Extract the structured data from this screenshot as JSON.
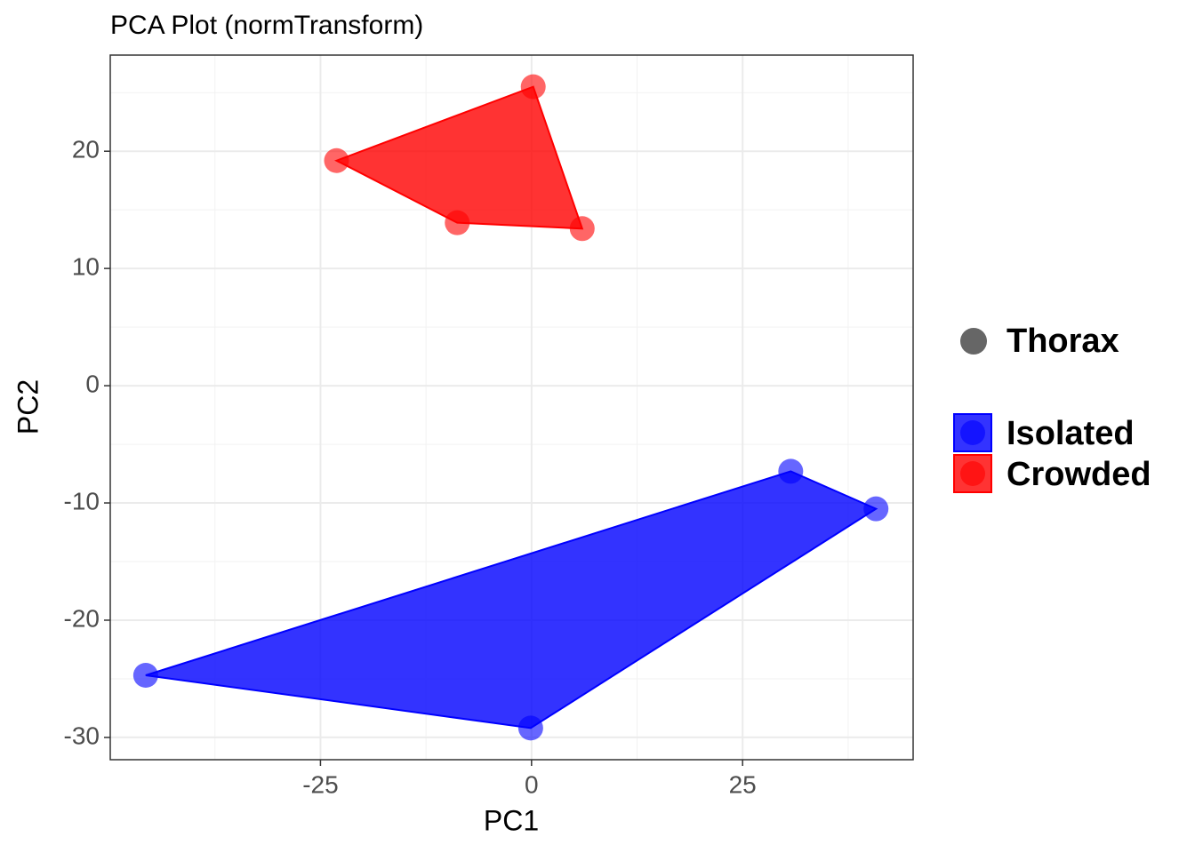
{
  "chart_data": {
    "type": "scatter",
    "title": "PCA Plot (normTransform)",
    "x_label": "PC1",
    "y_label": "PC2",
    "xlim": [
      -49.9,
      45.2
    ],
    "ylim": [
      -31.9,
      28.2
    ],
    "xticks": [
      -25,
      0,
      25
    ],
    "yticks": [
      -30,
      -20,
      -10,
      0,
      10,
      20
    ],
    "grid": true,
    "hull": true,
    "shape_legend": [
      "Thorax"
    ],
    "shape_color": "#666666",
    "series": [
      {
        "name": "Isolated",
        "color": "#0000ff",
        "x": [
          -45.7,
          30.7,
          40.8,
          -0.1
        ],
        "values": [
          -24.7,
          -7.3,
          -10.5,
          -29.2
        ]
      },
      {
        "name": "Crowded",
        "color": "#ff0000",
        "x": [
          -23.1,
          0.2,
          6.0,
          -8.8
        ],
        "values": [
          19.2,
          25.5,
          13.4,
          13.9
        ]
      }
    ]
  }
}
